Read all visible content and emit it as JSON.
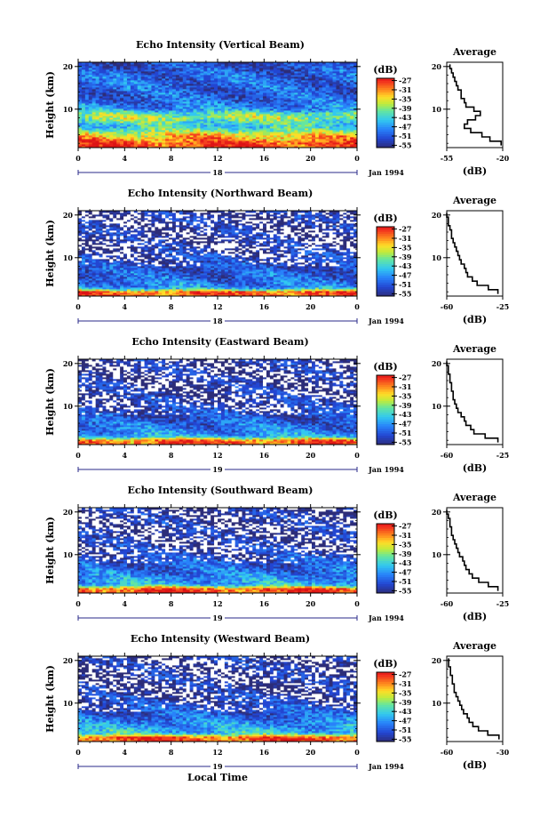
{
  "figure": {
    "xlabel": "Local Time",
    "date_label": "Jan 1994",
    "colorbar_unit": "(dB)",
    "colorbar_ticks": [
      "-27",
      "-31",
      "-35",
      "-39",
      "-43",
      "-47",
      "-51",
      "-55"
    ],
    "average_title": "Average",
    "average_xlabel": "(dB)"
  },
  "chart_data": [
    {
      "type": "heatmap",
      "title": "Echo Intensity (Vertical Beam)",
      "ylabel": "Height (km)",
      "x_ticks": [
        "0",
        "4",
        "8",
        "12",
        "16",
        "20",
        "0"
      ],
      "x_range": [
        0,
        24
      ],
      "y_ticks": [
        "10",
        "20"
      ],
      "y_range": [
        1,
        21
      ],
      "day_label": "18",
      "color_range_db": [
        -56,
        -26
      ],
      "band_profile": {
        "heights_km": [
          2,
          4,
          6,
          8,
          9,
          10,
          12,
          14,
          16,
          18,
          20
        ],
        "intensity_db": [
          -28,
          -34,
          -44,
          -38,
          -40,
          -47,
          -50,
          -51,
          -50,
          -50,
          -52
        ]
      },
      "average": {
        "xlim": [
          -55,
          -20
        ],
        "x_ticks": [
          "-55",
          "-20"
        ],
        "y_ticks": [
          "10",
          "20"
        ],
        "height_km": [
          2,
          3,
          4,
          5,
          6,
          7,
          8,
          9,
          10,
          11,
          12,
          13,
          14,
          15,
          16,
          17,
          18,
          19,
          20
        ],
        "db": [
          -21,
          -28,
          -33,
          -40,
          -44,
          -42,
          -37,
          -34,
          -38,
          -43,
          -44,
          -46,
          -46,
          -48,
          -49,
          -50,
          -51,
          -52,
          -53
        ]
      }
    },
    {
      "type": "heatmap",
      "title": "Echo Intensity (Northward Beam)",
      "ylabel": "Height (km)",
      "x_ticks": [
        "0",
        "4",
        "8",
        "12",
        "16",
        "20",
        "0"
      ],
      "x_range": [
        0,
        24
      ],
      "y_ticks": [
        "10",
        "20"
      ],
      "y_range": [
        1,
        21
      ],
      "day_label": "18",
      "color_range_db": [
        -56,
        -26
      ],
      "band_profile": {
        "heights_km": [
          2,
          3,
          5,
          7,
          9,
          11,
          13,
          15,
          17,
          19,
          20
        ],
        "intensity_db": [
          -29,
          -47,
          -50,
          -51,
          -53,
          -54,
          -55,
          -55,
          -55,
          -55,
          -55
        ]
      },
      "average": {
        "xlim": [
          -60,
          -25
        ],
        "x_ticks": [
          "-60",
          "-25"
        ],
        "y_ticks": [
          "10",
          "20"
        ],
        "height_km": [
          2,
          3,
          4,
          5,
          6,
          7,
          8,
          9,
          10,
          11,
          12,
          13,
          14,
          15,
          16,
          17,
          18,
          19,
          20
        ],
        "db": [
          -28,
          -34,
          -41,
          -44,
          -47,
          -48,
          -49,
          -51,
          -52,
          -53,
          -54,
          -55,
          -56,
          -57,
          -57,
          -58,
          -59,
          -59,
          -60
        ]
      }
    },
    {
      "type": "heatmap",
      "title": "Echo Intensity (Eastward Beam)",
      "ylabel": "Height (km)",
      "x_ticks": [
        "0",
        "4",
        "8",
        "12",
        "16",
        "20",
        "0"
      ],
      "x_range": [
        0,
        24
      ],
      "y_ticks": [
        "10",
        "20"
      ],
      "y_range": [
        1,
        21
      ],
      "day_label": "19",
      "color_range_db": [
        -56,
        -26
      ],
      "band_profile": {
        "heights_km": [
          2,
          3,
          5,
          7,
          9,
          11,
          13,
          15,
          17,
          19,
          20
        ],
        "intensity_db": [
          -29,
          -46,
          -49,
          -51,
          -53,
          -54,
          -55,
          -55,
          -55,
          -55,
          -55
        ]
      },
      "average": {
        "xlim": [
          -60,
          -25
        ],
        "x_ticks": [
          "-60",
          "-25"
        ],
        "y_ticks": [
          "10",
          "20"
        ],
        "height_km": [
          2,
          3,
          4,
          5,
          6,
          7,
          8,
          9,
          10,
          11,
          12,
          13,
          14,
          15,
          16,
          17,
          18,
          19,
          20
        ],
        "db": [
          -28,
          -36,
          -43,
          -45,
          -48,
          -49,
          -51,
          -53,
          -54,
          -55,
          -56,
          -56,
          -57,
          -57,
          -58,
          -58,
          -59,
          -59,
          -60
        ]
      }
    },
    {
      "type": "heatmap",
      "title": "Echo Intensity (Southward Beam)",
      "ylabel": "Height (km)",
      "x_ticks": [
        "0",
        "4",
        "8",
        "12",
        "16",
        "20",
        "0"
      ],
      "x_range": [
        0,
        24
      ],
      "y_ticks": [
        "10",
        "20"
      ],
      "y_range": [
        1,
        21
      ],
      "day_label": "19",
      "color_range_db": [
        -56,
        -26
      ],
      "band_profile": {
        "heights_km": [
          2,
          3,
          5,
          7,
          9,
          11,
          13,
          15,
          17,
          19,
          20
        ],
        "intensity_db": [
          -28,
          -45,
          -48,
          -50,
          -52,
          -54,
          -55,
          -55,
          -55,
          -55,
          -55
        ]
      },
      "average": {
        "xlim": [
          -60,
          -25
        ],
        "x_ticks": [
          "-60",
          "-25"
        ],
        "y_ticks": [
          "10",
          "20"
        ],
        "height_km": [
          2,
          3,
          4,
          5,
          6,
          7,
          8,
          9,
          10,
          11,
          12,
          13,
          14,
          15,
          16,
          17,
          18,
          19,
          20
        ],
        "db": [
          -28,
          -34,
          -40,
          -44,
          -46,
          -48,
          -49,
          -50,
          -52,
          -53,
          -54,
          -55,
          -56,
          -57,
          -57,
          -58,
          -58,
          -59,
          -60
        ]
      }
    },
    {
      "type": "heatmap",
      "title": "Echo Intensity (Westward Beam)",
      "ylabel": "Height (km)",
      "x_ticks": [
        "0",
        "4",
        "8",
        "12",
        "16",
        "20",
        "0"
      ],
      "x_range": [
        0,
        24
      ],
      "y_ticks": [
        "10",
        "20"
      ],
      "y_range": [
        1,
        21
      ],
      "day_label": "19",
      "color_range_db": [
        -56,
        -26
      ],
      "band_profile": {
        "heights_km": [
          2,
          3,
          5,
          7,
          9,
          11,
          13,
          15,
          17,
          19,
          20
        ],
        "intensity_db": [
          -28,
          -44,
          -47,
          -50,
          -52,
          -54,
          -55,
          -55,
          -55,
          -55,
          -55
        ]
      },
      "average": {
        "xlim": [
          -60,
          -30
        ],
        "x_ticks": [
          "-60",
          "-30"
        ],
        "y_ticks": [
          "10",
          "20"
        ],
        "height_km": [
          2,
          3,
          4,
          5,
          6,
          7,
          8,
          9,
          10,
          11,
          12,
          13,
          14,
          15,
          16,
          17,
          18,
          19,
          20
        ],
        "db": [
          -32,
          -38,
          -43,
          -46,
          -48,
          -49,
          -51,
          -52,
          -53,
          -54,
          -55,
          -56,
          -56,
          -57,
          -57,
          -58,
          -58,
          -59,
          -59
        ]
      }
    }
  ]
}
